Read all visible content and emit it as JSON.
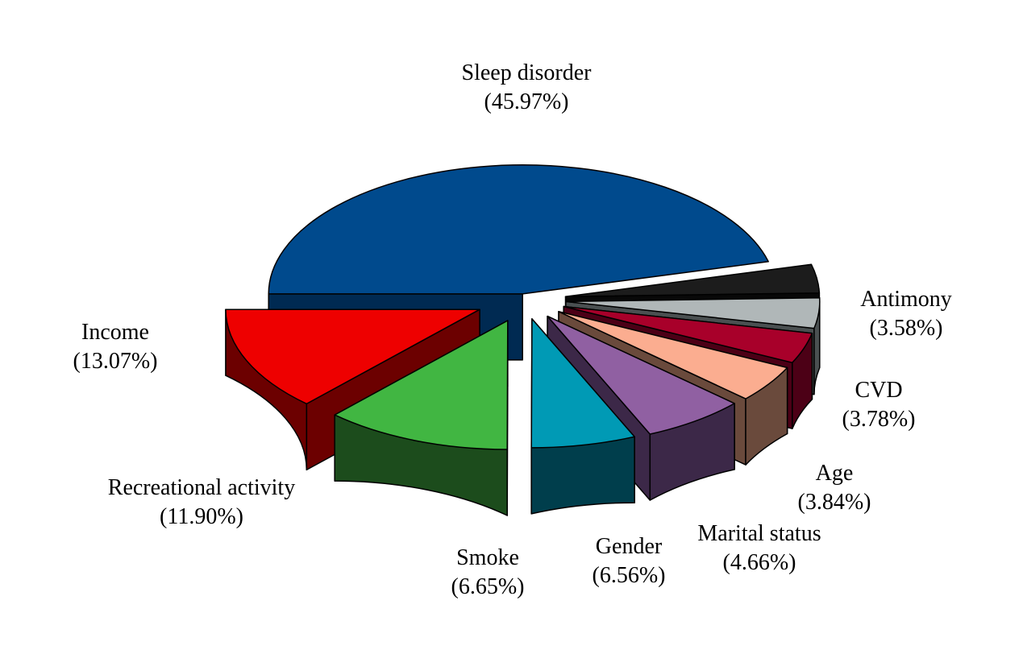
{
  "chart_data": {
    "type": "pie",
    "title": "",
    "slices": [
      {
        "label": "Sleep disorder",
        "value": 45.97,
        "value_label": "(45.97%)",
        "color": "#004A8D",
        "side_color": "#002A52"
      },
      {
        "label": "Antimony",
        "value": 3.58,
        "value_label": "(3.58%)",
        "color": "#1C1C1C",
        "side_color": "#080808"
      },
      {
        "label": "CVD",
        "value": 3.78,
        "value_label": "(3.78%)",
        "color": "#B0B7B8",
        "side_color": "#4A5051"
      },
      {
        "label": "Age",
        "value": 3.84,
        "value_label": "(3.84%)",
        "color": "#A8002A",
        "side_color": "#4C0016"
      },
      {
        "label": "Marital status",
        "value": 4.66,
        "value_label": "(4.66%)",
        "color": "#FBAD90",
        "side_color": "#6A4A3C"
      },
      {
        "label": "Gender",
        "value": 6.56,
        "value_label": "(6.56%)",
        "color": "#9060A2",
        "side_color": "#3C2848"
      },
      {
        "label": "Smoke",
        "value": 6.65,
        "value_label": "(6.65%)",
        "color": "#009AB5",
        "side_color": "#003E4C"
      },
      {
        "label": "Recreational activity",
        "value": 11.9,
        "value_label": "(11.90%)",
        "color": "#41B642",
        "side_color": "#1C4C1C"
      },
      {
        "label": "Income",
        "value": 13.07,
        "value_label": "(13.07%)",
        "color": "#EE0000",
        "side_color": "#6C0000"
      }
    ],
    "style": "3d-exploded"
  }
}
